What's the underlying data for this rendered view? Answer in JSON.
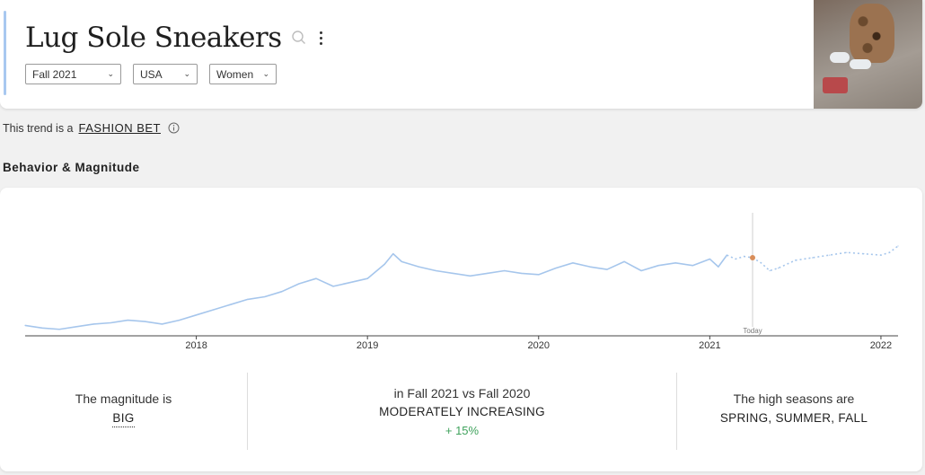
{
  "header": {
    "title": "Lug Sole Sneakers",
    "filters": [
      {
        "value": "Fall 2021"
      },
      {
        "value": "USA"
      },
      {
        "value": "Women"
      }
    ]
  },
  "trend": {
    "prefix": "This trend is a",
    "label": "FASHION BET"
  },
  "section_title": "Behavior & Magnitude",
  "chart_data": {
    "type": "line",
    "x_ticks": [
      "2018",
      "2019",
      "2020",
      "2021",
      "2022"
    ],
    "today_label": "Today",
    "today_x": 2021.25,
    "x_range": [
      2017.0,
      2022.1
    ],
    "y_range": [
      0,
      100
    ],
    "series": [
      {
        "style": "solid",
        "color": "#a6c6ec",
        "x": [
          2017.0,
          2017.1,
          2017.2,
          2017.3,
          2017.4,
          2017.5,
          2017.6,
          2017.7,
          2017.8,
          2017.9,
          2018.0,
          2018.1,
          2018.2,
          2018.3,
          2018.4,
          2018.5,
          2018.6,
          2018.7,
          2018.8,
          2018.9,
          2019.0,
          2019.1,
          2019.15,
          2019.2,
          2019.3,
          2019.4,
          2019.5,
          2019.6,
          2019.7,
          2019.8,
          2019.9,
          2020.0,
          2020.1,
          2020.2,
          2020.3,
          2020.4,
          2020.5,
          2020.6,
          2020.7,
          2020.8,
          2020.9,
          2021.0,
          2021.05,
          2021.1
        ],
        "y": [
          8,
          6,
          5,
          7,
          9,
          10,
          12,
          11,
          9,
          12,
          16,
          20,
          24,
          28,
          30,
          34,
          40,
          44,
          38,
          41,
          44,
          55,
          63,
          57,
          53,
          50,
          48,
          46,
          48,
          50,
          48,
          47,
          52,
          56,
          53,
          51,
          57,
          50,
          54,
          56,
          54,
          59,
          53,
          62
        ]
      },
      {
        "style": "dotted",
        "color": "#a6c6ec",
        "x": [
          2021.1,
          2021.15,
          2021.2,
          2021.25,
          2021.3,
          2021.35,
          2021.4,
          2021.5,
          2021.6,
          2021.7,
          2021.8,
          2021.9,
          2022.0,
          2022.05,
          2022.1
        ],
        "y": [
          62,
          59,
          61,
          60,
          56,
          50,
          52,
          58,
          60,
          62,
          64,
          63,
          62,
          64,
          69
        ]
      }
    ]
  },
  "stats": [
    {
      "line1": "The magnitude is",
      "line2": "BIG"
    },
    {
      "line1": "in Fall 2021 vs Fall 2020",
      "line2": "MODERATELY INCREASING",
      "line3": "+ 15%"
    },
    {
      "line1": "The high seasons are",
      "line2": "SPRING, SUMMER, FALL"
    }
  ]
}
